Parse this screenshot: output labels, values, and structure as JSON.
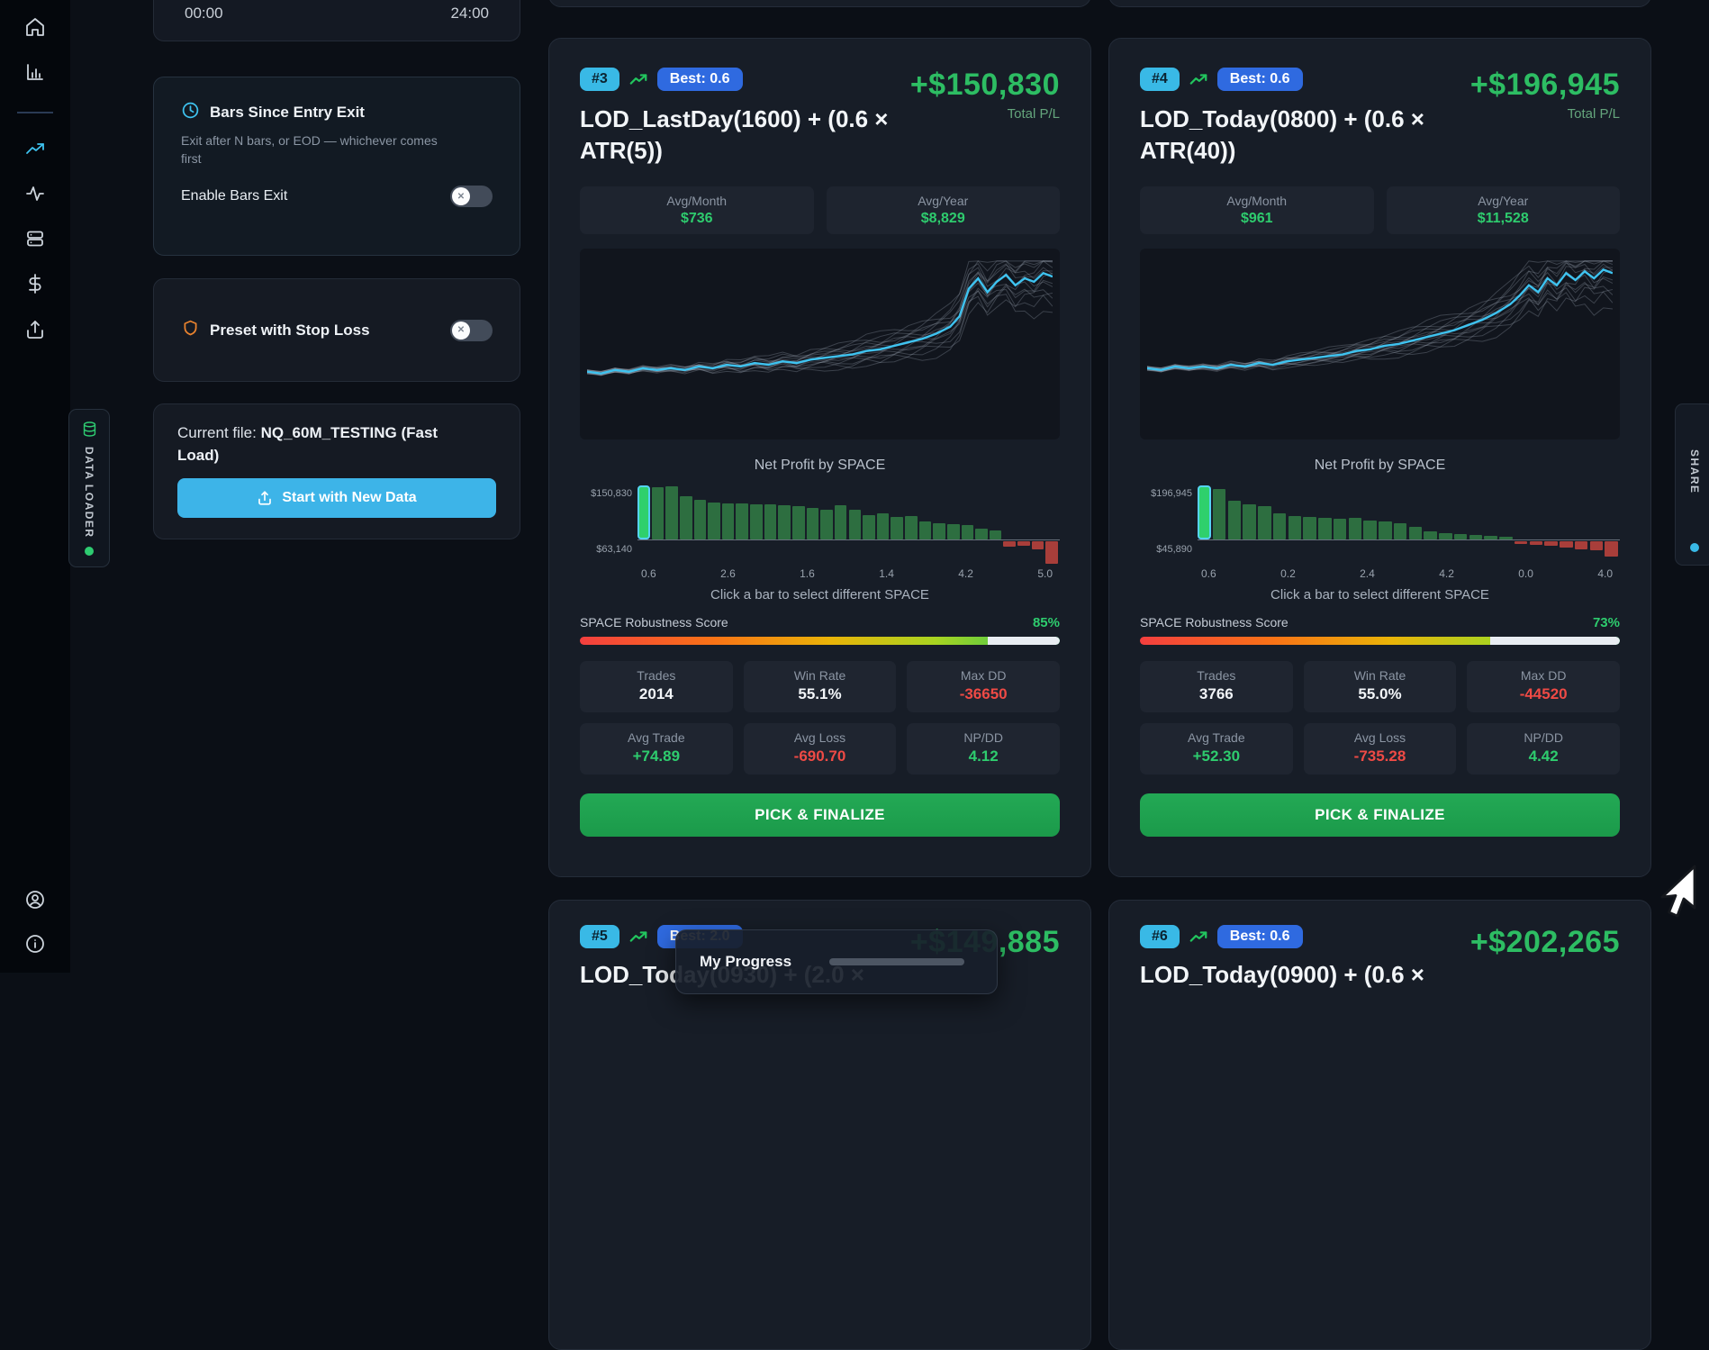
{
  "icons": {
    "toggle_x": "✕"
  },
  "left_panel": {
    "time_card": {
      "start_label": "00:00",
      "end_label": "24:00"
    },
    "bars_exit": {
      "title": "Bars Since Entry Exit",
      "description": "Exit after N bars, or EOD — whichever comes first",
      "toggle_label": "Enable Bars Exit"
    },
    "stop_loss": {
      "title": "Preset with Stop Loss"
    },
    "file_card": {
      "prefix": "Current file: ",
      "file_name": "NQ_60M_TESTING (Fast Load)",
      "button_label": "Start with New Data"
    },
    "data_loader_tab": {
      "label": "DATA LOADER"
    }
  },
  "share_tab": {
    "label": "SHARE"
  },
  "toast": {
    "title": "My Progress",
    "progress_pct": 13
  },
  "cards": [
    {
      "rank": "#3",
      "best_label": "Best: 0.6",
      "title": "LOD_LastDay(1600) + (0.6 × ATR(5))",
      "total_pl": "+$150,830",
      "total_pl_label": "Total P/L",
      "avg_month": {
        "label": "Avg/Month",
        "value": "$736"
      },
      "avg_year": {
        "label": "Avg/Year",
        "value": "$8,829"
      },
      "space_chart": {
        "type": "bar",
        "title": "Net Profit by SPACE",
        "y_top": "$150,830",
        "y_bottom": "$63,140",
        "x_ticks": [
          "0.6",
          "2.6",
          "1.6",
          "1.4",
          "4.2",
          "5.0"
        ],
        "values": [
          1.0,
          0.97,
          0.99,
          0.8,
          0.74,
          0.68,
          0.67,
          0.67,
          0.66,
          0.65,
          0.64,
          0.62,
          0.58,
          0.56,
          0.63,
          0.56,
          0.46,
          0.48,
          0.42,
          0.44,
          0.34,
          0.31,
          0.29,
          0.27,
          0.21,
          0.17,
          -0.1,
          -0.09,
          -0.16,
          -0.45
        ]
      },
      "hint": "Click a bar to select different SPACE",
      "robustness": {
        "label": "SPACE Robustness Score",
        "pct_label": "85%",
        "pct": 85
      },
      "stats": [
        {
          "label": "Trades",
          "value": "2014"
        },
        {
          "label": "Win Rate",
          "value": "55.1%"
        },
        {
          "label": "Max DD",
          "value": "-36650"
        },
        {
          "label": "Avg Trade",
          "value": "+74.89"
        },
        {
          "label": "Avg Loss",
          "value": "-690.70"
        },
        {
          "label": "NP/DD",
          "value": "4.12"
        }
      ],
      "action_label": "PICK & FINALIZE",
      "equity": [
        [
          0,
          66
        ],
        [
          3,
          67
        ],
        [
          6,
          65
        ],
        [
          9,
          66
        ],
        [
          12,
          64
        ],
        [
          15,
          65
        ],
        [
          18,
          64
        ],
        [
          21,
          65
        ],
        [
          24,
          63
        ],
        [
          27,
          64
        ],
        [
          30,
          62
        ],
        [
          33,
          63
        ],
        [
          36,
          61
        ],
        [
          39,
          62
        ],
        [
          42,
          60
        ],
        [
          45,
          61
        ],
        [
          48,
          59
        ],
        [
          51,
          58
        ],
        [
          54,
          57
        ],
        [
          57,
          56
        ],
        [
          60,
          54
        ],
        [
          63,
          53
        ],
        [
          66,
          51
        ],
        [
          69,
          49
        ],
        [
          72,
          47
        ],
        [
          75,
          44
        ],
        [
          78,
          40
        ],
        [
          80,
          34
        ],
        [
          82,
          18
        ],
        [
          84,
          12
        ],
        [
          86,
          20
        ],
        [
          88,
          14
        ],
        [
          90,
          10
        ],
        [
          92,
          16
        ],
        [
          94,
          12
        ],
        [
          96,
          14
        ],
        [
          98,
          9
        ],
        [
          100,
          11
        ]
      ]
    },
    {
      "rank": "#4",
      "best_label": "Best: 0.6",
      "title": "LOD_Today(0800) + (0.6 × ATR(40))",
      "total_pl": "+$196,945",
      "total_pl_label": "Total P/L",
      "avg_month": {
        "label": "Avg/Month",
        "value": "$961"
      },
      "avg_year": {
        "label": "Avg/Year",
        "value": "$11,528"
      },
      "space_chart": {
        "type": "bar",
        "title": "Net Profit by SPACE",
        "y_top": "$196,945",
        "y_bottom": "$45,890",
        "x_ticks": [
          "0.6",
          "0.2",
          "2.4",
          "4.2",
          "0.0",
          "4.0"
        ],
        "values": [
          1.0,
          0.93,
          0.72,
          0.66,
          0.62,
          0.48,
          0.44,
          0.42,
          0.41,
          0.38,
          0.4,
          0.35,
          0.33,
          0.31,
          0.24,
          0.16,
          0.12,
          0.1,
          0.08,
          0.07,
          0.05,
          -0.05,
          -0.06,
          -0.09,
          -0.12,
          -0.15,
          -0.18,
          -0.3
        ]
      },
      "hint": "Click a bar to select different SPACE",
      "robustness": {
        "label": "SPACE Robustness Score",
        "pct_label": "73%",
        "pct": 73
      },
      "stats": [
        {
          "label": "Trades",
          "value": "3766"
        },
        {
          "label": "Win Rate",
          "value": "55.0%"
        },
        {
          "label": "Max DD",
          "value": "-44520"
        },
        {
          "label": "Avg Trade",
          "value": "+52.30"
        },
        {
          "label": "Avg Loss",
          "value": "-735.28"
        },
        {
          "label": "NP/DD",
          "value": "4.42"
        }
      ],
      "action_label": "PICK & FINALIZE",
      "equity": [
        [
          0,
          64
        ],
        [
          3,
          65
        ],
        [
          6,
          63
        ],
        [
          9,
          64
        ],
        [
          12,
          63
        ],
        [
          15,
          64
        ],
        [
          18,
          62
        ],
        [
          21,
          63
        ],
        [
          24,
          61
        ],
        [
          27,
          62
        ],
        [
          30,
          60
        ],
        [
          33,
          59
        ],
        [
          36,
          58
        ],
        [
          39,
          57
        ],
        [
          42,
          56
        ],
        [
          45,
          54
        ],
        [
          48,
          53
        ],
        [
          51,
          51
        ],
        [
          54,
          50
        ],
        [
          57,
          48
        ],
        [
          60,
          46
        ],
        [
          63,
          44
        ],
        [
          66,
          42
        ],
        [
          69,
          39
        ],
        [
          72,
          36
        ],
        [
          75,
          32
        ],
        [
          78,
          27
        ],
        [
          80,
          22
        ],
        [
          82,
          16
        ],
        [
          84,
          20
        ],
        [
          86,
          12
        ],
        [
          88,
          16
        ],
        [
          90,
          9
        ],
        [
          92,
          13
        ],
        [
          94,
          8
        ],
        [
          96,
          12
        ],
        [
          98,
          7
        ],
        [
          100,
          9
        ]
      ]
    }
  ],
  "bottom_cards": [
    {
      "rank": "#5",
      "best_label": "Best: 2.0",
      "total_pl": "+$149,885",
      "title_partial": "LOD_Today(0930) + (2.0 ×"
    },
    {
      "rank": "#6",
      "best_label": "Best: 0.6",
      "total_pl": "+$202,265",
      "title_partial": "LOD_Today(0900) + (0.6 ×"
    }
  ]
}
